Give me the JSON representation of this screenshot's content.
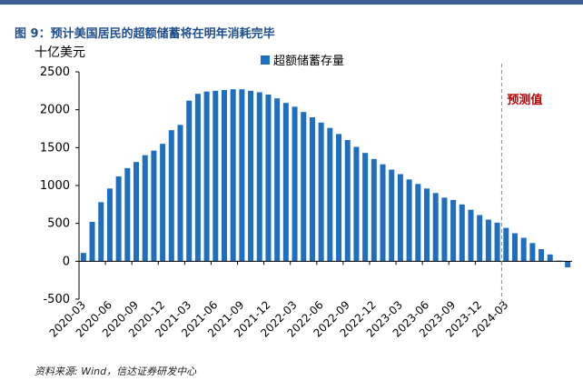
{
  "header": {
    "title": "图 9：预计美国居民的超额储蓄将在明年消耗完毕"
  },
  "source_note": "资料来源: Wind，信达证券研发中心",
  "chart_data": {
    "type": "bar",
    "unit_label": "十亿美元",
    "legend_position": "top",
    "series": [
      {
        "name": "超额储蓄存量",
        "color": "#1f6fc1",
        "values": [
          110,
          520,
          780,
          960,
          1120,
          1230,
          1310,
          1400,
          1460,
          1550,
          1730,
          1800,
          2120,
          2210,
          2240,
          2250,
          2260,
          2270,
          2270,
          2250,
          2230,
          2200,
          2150,
          2090,
          2040,
          1970,
          1900,
          1830,
          1760,
          1680,
          1600,
          1510,
          1430,
          1350,
          1280,
          1210,
          1150,
          1080,
          1020,
          960,
          900,
          840,
          810,
          750,
          680,
          610,
          550,
          510,
          440,
          370,
          310,
          240,
          160,
          90,
          10,
          -80
        ]
      }
    ],
    "x_tick_labels": [
      "2020-03",
      "2020-06",
      "2020-09",
      "2020-12",
      "2021-03",
      "2021-06",
      "2021-09",
      "2021-12",
      "2022-03",
      "2022-06",
      "2022-09",
      "2022-12",
      "2023-03",
      "2023-06",
      "2023-09",
      "2023-12",
      "2024-03"
    ],
    "y_ticks": [
      -500,
      0,
      500,
      1000,
      1500,
      2000,
      2500
    ],
    "ylim": [
      -500,
      2500
    ],
    "forecast": {
      "label": "预测值",
      "after_bar_index": 47
    }
  }
}
